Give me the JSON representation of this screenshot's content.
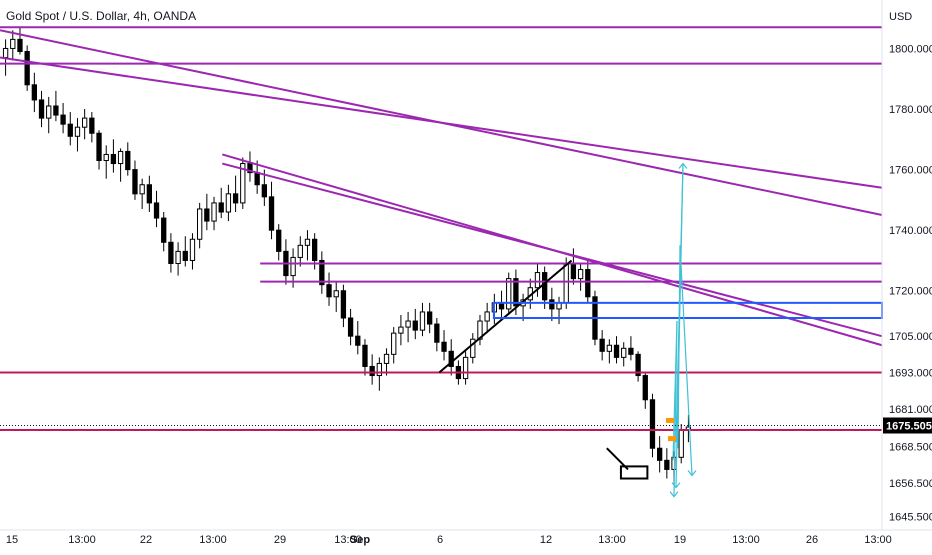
{
  "chart_data": {
    "type": "candlestick",
    "title": "Gold Spot / U.S. Dollar, 4h, OANDA",
    "currency": "USD",
    "current_price": 1675.505,
    "y_ticks": [
      1800.0,
      1780.0,
      1760.0,
      1740.0,
      1720.0,
      1705.0,
      1693.0,
      1681.0,
      1668.5,
      1656.5,
      1645.5
    ],
    "x_ticks": [
      "15",
      "13:00",
      "22",
      "13:00",
      "29",
      "13:00",
      "Sep",
      "6",
      "12",
      "13:00",
      "19",
      "13:00",
      "26",
      "13:00"
    ],
    "ylim": [
      1641,
      1816
    ],
    "grid": false,
    "colors": {
      "candle": "#000000",
      "purple_line": "#9c27b0",
      "magenta_line": "#c2185b",
      "blue_box": "#1e5bff",
      "cyan_arrow": "#3fc1d6",
      "orange_marker": "#ff9800",
      "price_badge": "#000000"
    },
    "candles": [
      [
        1797,
        1803,
        1791,
        1800
      ],
      [
        1800,
        1806,
        1796,
        1803
      ],
      [
        1803,
        1807,
        1798,
        1799
      ],
      [
        1799,
        1801,
        1786,
        1788
      ],
      [
        1788,
        1792,
        1779,
        1783
      ],
      [
        1783,
        1786,
        1774,
        1777
      ],
      [
        1777,
        1784,
        1772,
        1781
      ],
      [
        1781,
        1786,
        1776,
        1778
      ],
      [
        1778,
        1782,
        1772,
        1775
      ],
      [
        1775,
        1779,
        1768,
        1771
      ],
      [
        1771,
        1777,
        1766,
        1774
      ],
      [
        1774,
        1780,
        1770,
        1777
      ],
      [
        1777,
        1779,
        1769,
        1772
      ],
      [
        1772,
        1773,
        1760,
        1763
      ],
      [
        1763,
        1768,
        1757,
        1765
      ],
      [
        1765,
        1770,
        1759,
        1762
      ],
      [
        1762,
        1767,
        1756,
        1766
      ],
      [
        1766,
        1769,
        1758,
        1760
      ],
      [
        1760,
        1763,
        1750,
        1752
      ],
      [
        1752,
        1757,
        1747,
        1755
      ],
      [
        1755,
        1758,
        1746,
        1749
      ],
      [
        1749,
        1753,
        1741,
        1744
      ],
      [
        1744,
        1746,
        1733,
        1736
      ],
      [
        1736,
        1739,
        1726,
        1729
      ],
      [
        1729,
        1736,
        1725,
        1733
      ],
      [
        1733,
        1738,
        1728,
        1730
      ],
      [
        1730,
        1739,
        1727,
        1737
      ],
      [
        1737,
        1749,
        1734,
        1747
      ],
      [
        1747,
        1752,
        1740,
        1743
      ],
      [
        1743,
        1751,
        1740,
        1749
      ],
      [
        1749,
        1754,
        1744,
        1746
      ],
      [
        1746,
        1755,
        1743,
        1752
      ],
      [
        1752,
        1758,
        1746,
        1749
      ],
      [
        1749,
        1764,
        1747,
        1762
      ],
      [
        1762,
        1766,
        1756,
        1759
      ],
      [
        1759,
        1763,
        1752,
        1755
      ],
      [
        1755,
        1760,
        1748,
        1751
      ],
      [
        1751,
        1756,
        1737,
        1740
      ],
      [
        1740,
        1742,
        1730,
        1733
      ],
      [
        1733,
        1737,
        1722,
        1725
      ],
      [
        1725,
        1734,
        1721,
        1731
      ],
      [
        1731,
        1738,
        1728,
        1735
      ],
      [
        1735,
        1740,
        1730,
        1737
      ],
      [
        1737,
        1739,
        1727,
        1730
      ],
      [
        1730,
        1733,
        1719,
        1722
      ],
      [
        1722,
        1726,
        1715,
        1718
      ],
      [
        1718,
        1723,
        1713,
        1720
      ],
      [
        1720,
        1722,
        1708,
        1711
      ],
      [
        1711,
        1714,
        1702,
        1705
      ],
      [
        1705,
        1710,
        1699,
        1702
      ],
      [
        1702,
        1704,
        1692,
        1695
      ],
      [
        1695,
        1699,
        1689,
        1692
      ],
      [
        1692,
        1698,
        1687,
        1696
      ],
      [
        1696,
        1701,
        1692,
        1699
      ],
      [
        1699,
        1708,
        1696,
        1706
      ],
      [
        1706,
        1712,
        1702,
        1708
      ],
      [
        1708,
        1713,
        1703,
        1710
      ],
      [
        1710,
        1714,
        1704,
        1707
      ],
      [
        1707,
        1716,
        1705,
        1713
      ],
      [
        1713,
        1716,
        1706,
        1709
      ],
      [
        1709,
        1711,
        1700,
        1703
      ],
      [
        1703,
        1707,
        1697,
        1700
      ],
      [
        1700,
        1704,
        1692,
        1695
      ],
      [
        1695,
        1697,
        1689,
        1691
      ],
      [
        1691,
        1700,
        1689,
        1698
      ],
      [
        1698,
        1706,
        1696,
        1704
      ],
      [
        1704,
        1712,
        1702,
        1710
      ],
      [
        1710,
        1716,
        1706,
        1713
      ],
      [
        1713,
        1719,
        1709,
        1716
      ],
      [
        1716,
        1720,
        1710,
        1714
      ],
      [
        1714,
        1726,
        1712,
        1724
      ],
      [
        1724,
        1727,
        1712,
        1715
      ],
      [
        1715,
        1719,
        1710,
        1717
      ],
      [
        1717,
        1724,
        1714,
        1721
      ],
      [
        1721,
        1729,
        1718,
        1726
      ],
      [
        1726,
        1728,
        1714,
        1717
      ],
      [
        1717,
        1721,
        1710,
        1714
      ],
      [
        1714,
        1718,
        1709,
        1716
      ],
      [
        1716,
        1731,
        1714,
        1729
      ],
      [
        1729,
        1734,
        1722,
        1724
      ],
      [
        1724,
        1729,
        1720,
        1727
      ],
      [
        1727,
        1730,
        1716,
        1718
      ],
      [
        1718,
        1720,
        1702,
        1704
      ],
      [
        1704,
        1707,
        1697,
        1700
      ],
      [
        1700,
        1704,
        1696,
        1702
      ],
      [
        1702,
        1705,
        1696,
        1698
      ],
      [
        1698,
        1703,
        1695,
        1701
      ],
      [
        1701,
        1705,
        1697,
        1699
      ],
      [
        1699,
        1700,
        1690,
        1692
      ],
      [
        1692,
        1693,
        1681,
        1684
      ],
      [
        1684,
        1686,
        1665,
        1668
      ],
      [
        1668,
        1672,
        1660,
        1664
      ],
      [
        1664,
        1668,
        1658,
        1661
      ],
      [
        1661,
        1667,
        1656,
        1665
      ],
      [
        1665,
        1676,
        1663,
        1674
      ],
      [
        1674,
        1679,
        1670,
        1675
      ]
    ],
    "lines": [
      {
        "style": "purple",
        "from": [
          0,
          1807
        ],
        "to": [
          1.0,
          1807
        ]
      },
      {
        "style": "purple",
        "from": [
          0,
          1795
        ],
        "to": [
          1.0,
          1795
        ]
      },
      {
        "style": "purple",
        "from": [
          0,
          1806
        ],
        "to": [
          1.0,
          1745
        ]
      },
      {
        "style": "purple",
        "from": [
          0,
          1797
        ],
        "to": [
          1.0,
          1754
        ]
      },
      {
        "style": "purple",
        "from": [
          0.252,
          1765
        ],
        "to": [
          1.0,
          1702
        ]
      },
      {
        "style": "purple",
        "from": [
          0.252,
          1762
        ],
        "to": [
          1.0,
          1705
        ]
      },
      {
        "style": "purple",
        "from": [
          0.295,
          1729
        ],
        "to": [
          1.0,
          1729
        ]
      },
      {
        "style": "purple",
        "from": [
          0.295,
          1723
        ],
        "to": [
          1.0,
          1723
        ]
      },
      {
        "style": "magenta",
        "from": [
          0,
          1693
        ],
        "to": [
          1.0,
          1693
        ]
      },
      {
        "style": "magenta",
        "from": [
          0,
          1674
        ],
        "to": [
          1.0,
          1674
        ]
      },
      {
        "style": "black",
        "from": [
          0.498,
          1693
        ],
        "to": [
          0.648,
          1730
        ]
      },
      {
        "style": "black",
        "from": [
          0.688,
          1668
        ],
        "to": [
          0.712,
          1661
        ]
      }
    ],
    "boxes": [
      {
        "style": "blue",
        "from": [
          0.56,
          1716
        ],
        "to": [
          1.0,
          1711
        ]
      },
      {
        "style": "black",
        "from": [
          0.704,
          1662
        ],
        "to": [
          0.734,
          1658
        ]
      }
    ]
  }
}
